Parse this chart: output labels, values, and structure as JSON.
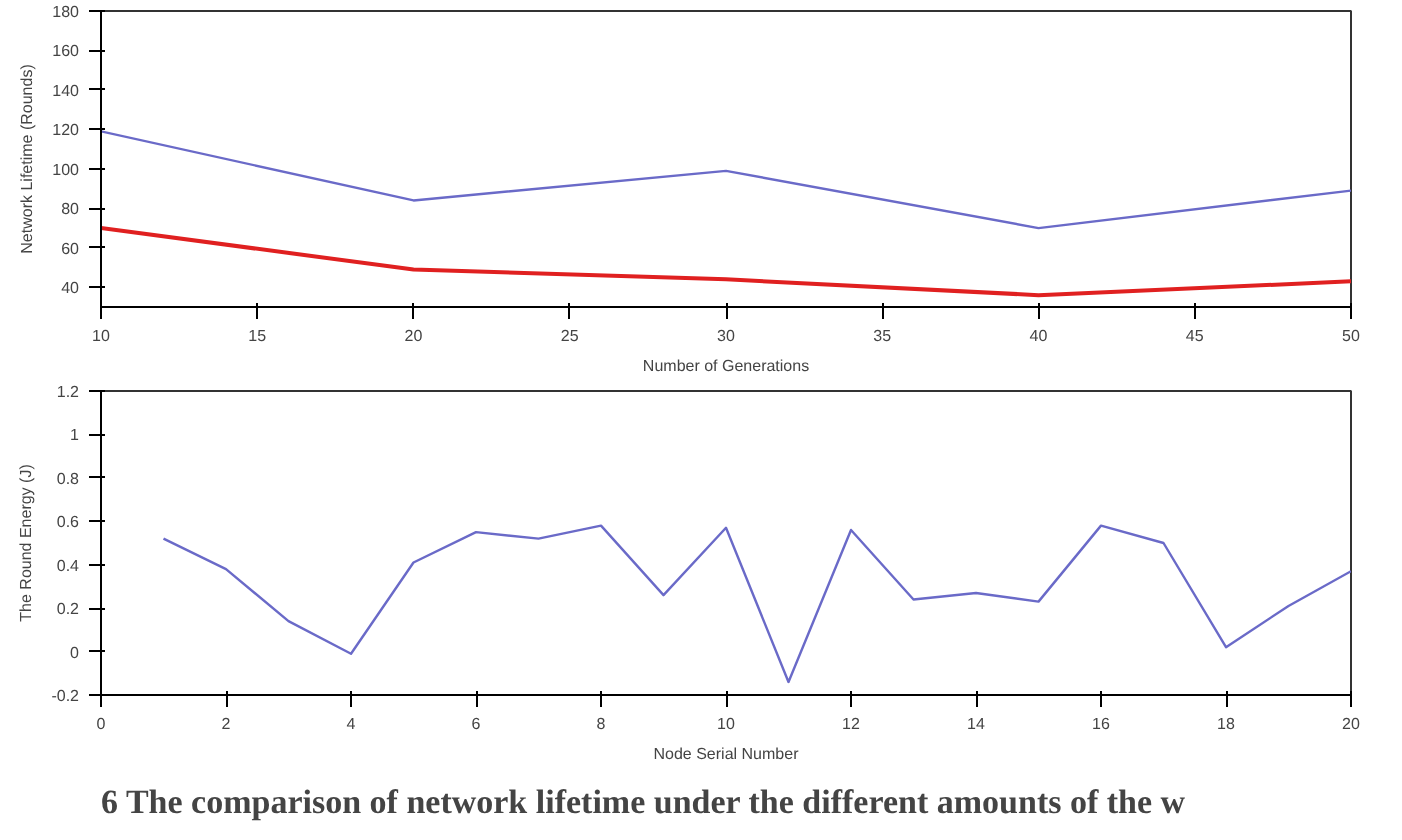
{
  "chart_data": [
    {
      "type": "line",
      "xlabel": "Number of Generations",
      "ylabel": "Network Lifetime (Rounds)",
      "x": [
        10,
        20,
        30,
        40,
        50
      ],
      "xlim": [
        10,
        50
      ],
      "xticks": [
        10,
        15,
        20,
        25,
        30,
        35,
        40,
        45,
        50
      ],
      "ylim": [
        30,
        180
      ],
      "yticks": [
        40,
        60,
        80,
        100,
        120,
        140,
        160,
        180
      ],
      "grid": false,
      "series": [
        {
          "color": "#6a6ac8",
          "values": [
            119,
            84,
            99,
            70,
            89
          ]
        },
        {
          "color": "#e02020",
          "values": [
            70,
            49,
            44,
            36,
            43
          ]
        }
      ]
    },
    {
      "type": "line",
      "xlabel": "Node Serial Number",
      "ylabel": "The Round Energy (J)",
      "x": [
        1,
        2,
        3,
        4,
        5,
        6,
        7,
        8,
        9,
        10,
        11,
        12,
        13,
        14,
        15,
        16,
        17,
        18,
        19,
        20
      ],
      "xlim": [
        0,
        20
      ],
      "xticks": [
        0,
        2,
        4,
        6,
        8,
        10,
        12,
        14,
        16,
        18,
        20
      ],
      "ylim": [
        -0.2,
        1.2
      ],
      "yticks": [
        -0.2,
        0,
        0.2,
        0.4,
        0.6,
        0.8,
        1,
        1.2
      ],
      "grid": false,
      "annotations": [
        "6 The comparison of network lifetime under the different amounts of the w"
      ],
      "series": [
        {
          "color": "#6a6ac8",
          "values": [
            0.52,
            0.38,
            0.14,
            -0.01,
            0.41,
            0.55,
            0.52,
            0.58,
            0.26,
            0.57,
            -0.14,
            0.56,
            0.24,
            0.27,
            0.23,
            0.58,
            0.5,
            0.02,
            0.21,
            0.37
          ]
        }
      ]
    }
  ]
}
